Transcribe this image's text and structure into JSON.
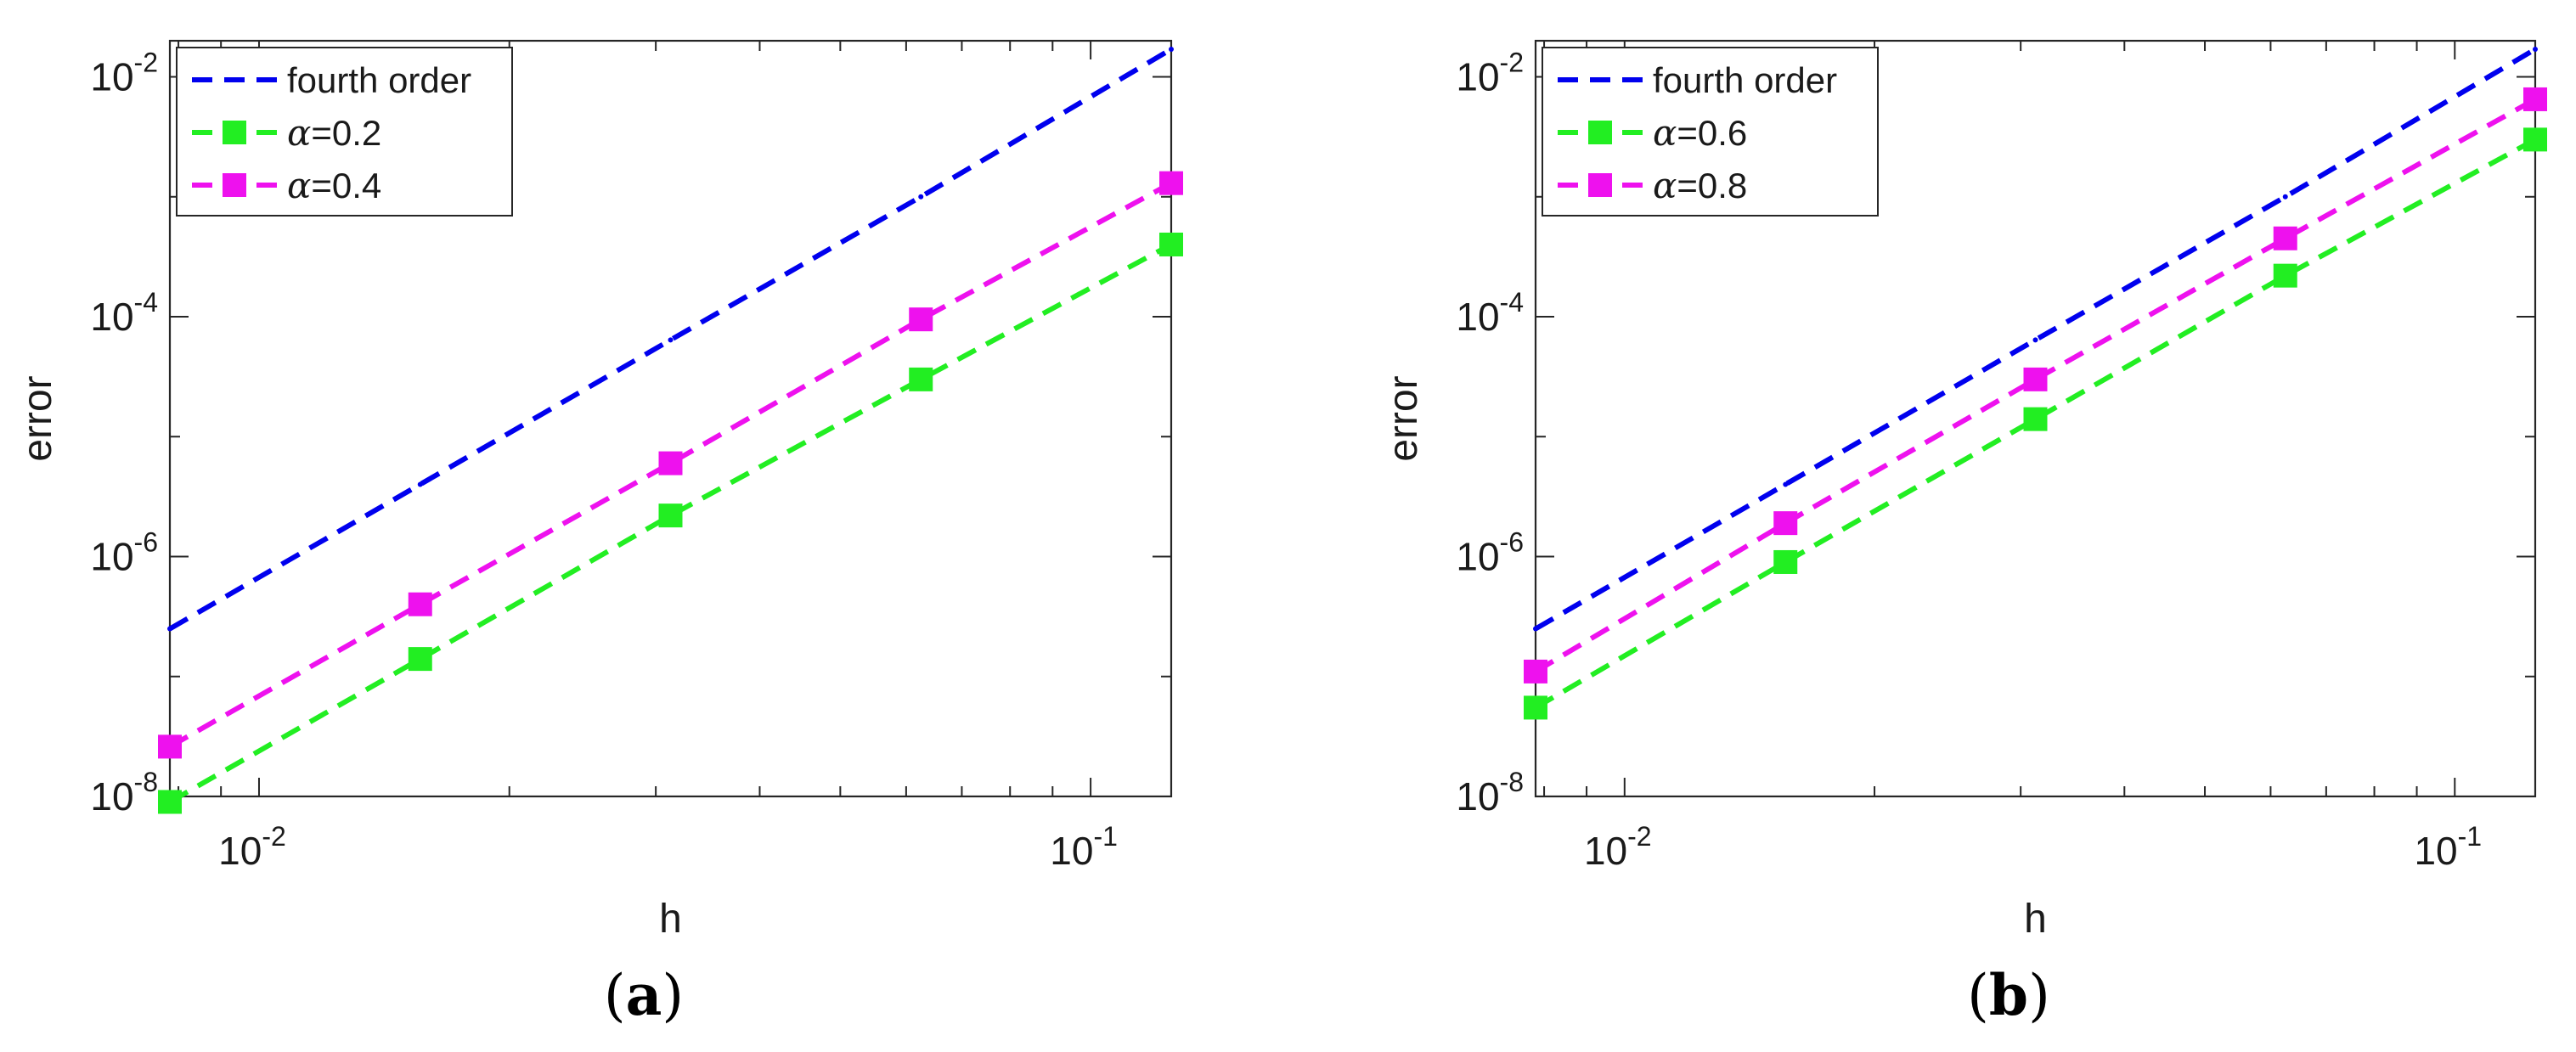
{
  "charts": [
    {
      "id": "a",
      "panel_label": "a",
      "chart_data": {
        "type": "line",
        "xscale": "log",
        "yscale": "log",
        "xlabel": "h",
        "ylabel": "error",
        "xlim": [
          0.0078125,
          0.125
        ],
        "ylim": [
          1e-08,
          0.02
        ],
        "x": [
          0.0078125,
          0.015625,
          0.03125,
          0.0625,
          0.125
        ],
        "x_ticks": [
          0.01,
          0.1
        ],
        "x_tick_labels": [
          {
            "base": "10",
            "exp": "-2"
          },
          {
            "base": "10",
            "exp": "-1"
          }
        ],
        "y_ticks": [
          1e-08,
          1e-06,
          0.0001,
          0.01
        ],
        "y_tick_labels": [
          {
            "base": "10",
            "exp": "-8"
          },
          {
            "base": "10",
            "exp": "-6"
          },
          {
            "base": "10",
            "exp": "-4"
          },
          {
            "base": "10",
            "exp": "-2"
          }
        ],
        "legend_position": "top-left",
        "series": [
          {
            "name": "fourth order",
            "name_prefix": "",
            "name_value": "fourth order",
            "color": "#0000ee",
            "marker": "none",
            "values": [
              2.5e-07,
              4e-06,
              6.4e-05,
              0.001,
              0.017
            ]
          },
          {
            "name": "α=0.2",
            "name_prefix": "α",
            "name_value": "=0.2",
            "color": "#22ee22",
            "marker": "square",
            "values": [
              9e-09,
              1.4e-07,
              2.2e-06,
              3e-05,
              0.0004
            ]
          },
          {
            "name": "α=0.4",
            "name_prefix": "α",
            "name_value": "=0.4",
            "color": "#ee11ee",
            "marker": "square",
            "values": [
              2.6e-08,
              4e-07,
              6e-06,
              9.5e-05,
              0.0013
            ]
          }
        ]
      }
    },
    {
      "id": "b",
      "panel_label": "b",
      "chart_data": {
        "type": "line",
        "xscale": "log",
        "yscale": "log",
        "xlabel": "h",
        "ylabel": "error",
        "xlim": [
          0.0078125,
          0.125
        ],
        "ylim": [
          1e-08,
          0.02
        ],
        "x": [
          0.0078125,
          0.015625,
          0.03125,
          0.0625,
          0.125
        ],
        "x_ticks": [
          0.01,
          0.1
        ],
        "x_tick_labels": [
          {
            "base": "10",
            "exp": "-2"
          },
          {
            "base": "10",
            "exp": "-1"
          }
        ],
        "y_ticks": [
          1e-08,
          1e-06,
          0.0001,
          0.01
        ],
        "y_tick_labels": [
          {
            "base": "10",
            "exp": "-8"
          },
          {
            "base": "10",
            "exp": "-6"
          },
          {
            "base": "10",
            "exp": "-4"
          },
          {
            "base": "10",
            "exp": "-2"
          }
        ],
        "legend_position": "top-left",
        "series": [
          {
            "name": "fourth order",
            "name_prefix": "",
            "name_value": "fourth order",
            "color": "#0000ee",
            "marker": "none",
            "values": [
              2.5e-07,
              4e-06,
              6.4e-05,
              0.001,
              0.017
            ]
          },
          {
            "name": "α=0.6",
            "name_prefix": "α",
            "name_value": "=0.6",
            "color": "#22ee22",
            "marker": "square",
            "values": [
              5.5e-08,
              9e-07,
              1.4e-05,
              0.00022,
              0.003
            ]
          },
          {
            "name": "α=0.8",
            "name_prefix": "α",
            "name_value": "=0.8",
            "color": "#ee11ee",
            "marker": "square",
            "values": [
              1.1e-07,
              1.9e-06,
              3e-05,
              0.00045,
              0.0065
            ]
          }
        ]
      }
    }
  ]
}
